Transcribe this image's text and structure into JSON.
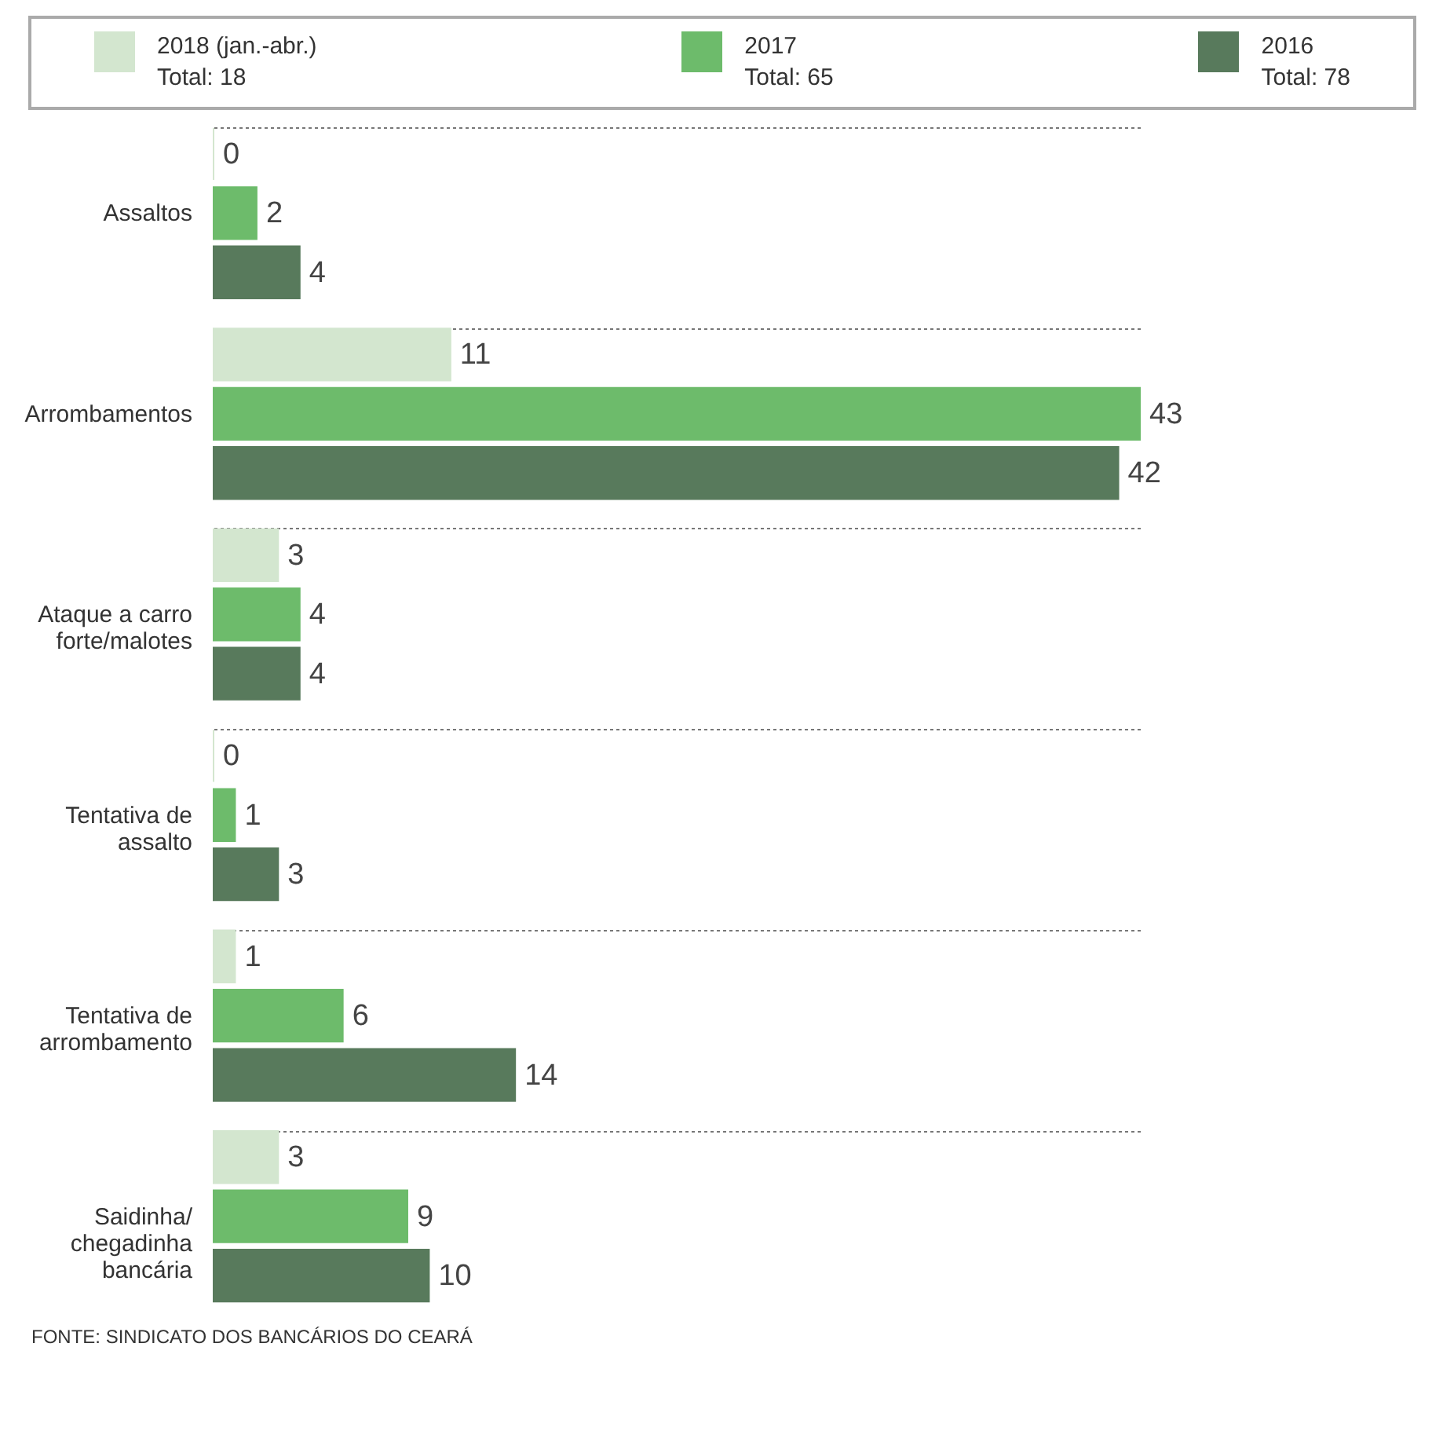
{
  "chart_data": {
    "type": "bar",
    "orientation": "horizontal",
    "categories": [
      "Assaltos",
      "Arrombamentos",
      "Ataque a carro forte/malotes",
      "Tentativa de assalto",
      "Tentativa de arrombamento",
      "Saidinha/ chegadinha bancária"
    ],
    "series": [
      {
        "name": "2018 (jan.-abr.)",
        "color": "#d3e6cf",
        "values": [
          0,
          11,
          3,
          0,
          1,
          3
        ]
      },
      {
        "name": "2017",
        "color": "#6dbb6b",
        "values": [
          2,
          43,
          4,
          1,
          6,
          9
        ]
      },
      {
        "name": "2016",
        "color": "#587a5c",
        "values": [
          4,
          42,
          4,
          3,
          14,
          10
        ]
      }
    ],
    "data_labels": true,
    "legend": "top",
    "grid": "y",
    "annotations": [
      "Total: 18",
      "Total: 65",
      "Total: 78",
      "FONTE: SINDICATO DOS BANCÁRIOS DO CEARÁ"
    ]
  }
}
